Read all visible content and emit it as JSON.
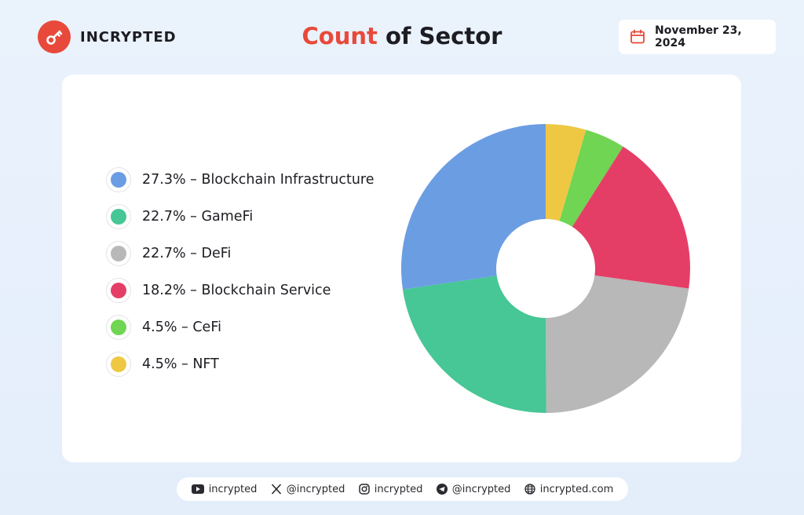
{
  "brand": {
    "name": "INCRYPTED",
    "color": "#e8493a"
  },
  "header": {
    "title_highlight": "Count",
    "title_rest": " of Sector",
    "date": "November 23, 2024"
  },
  "chart_data": {
    "type": "pie",
    "title": "Count of Sector",
    "donut": true,
    "slices": [
      {
        "label": "Blockchain Infrastructure",
        "value": 27.3,
        "color": "#6b9de3",
        "legend": "27.3% – Blockchain Infrastructure"
      },
      {
        "label": "GameFi",
        "value": 22.7,
        "color": "#46c795",
        "legend": "22.7% – GameFi"
      },
      {
        "label": "DeFi",
        "value": 22.7,
        "color": "#b8b8b8",
        "legend": "22.7% – DeFi"
      },
      {
        "label": "Blockchain Service",
        "value": 18.2,
        "color": "#e53e66",
        "legend": "18.2% – Blockchain Service"
      },
      {
        "label": "CeFi",
        "value": 4.5,
        "color": "#6fd552",
        "legend": "4.5% – CeFi"
      },
      {
        "label": "NFT",
        "value": 4.5,
        "color": "#eec843",
        "legend": "4.5% – NFT"
      }
    ],
    "clockwise_order_from_top": [
      "NFT",
      "CeFi",
      "Blockchain Service",
      "DeFi",
      "GameFi",
      "Blockchain Infrastructure"
    ],
    "legend_position": "left"
  },
  "footer": {
    "youtube": {
      "icon": "youtube-icon",
      "label": "incrypted"
    },
    "x": {
      "icon": "x-icon",
      "label": "@incrypted"
    },
    "instagram": {
      "icon": "instagram-icon",
      "label": "incrypted"
    },
    "telegram": {
      "icon": "telegram-icon",
      "label": "@incrypted"
    },
    "website": {
      "icon": "globe-icon",
      "label": "incrypted.com"
    }
  }
}
